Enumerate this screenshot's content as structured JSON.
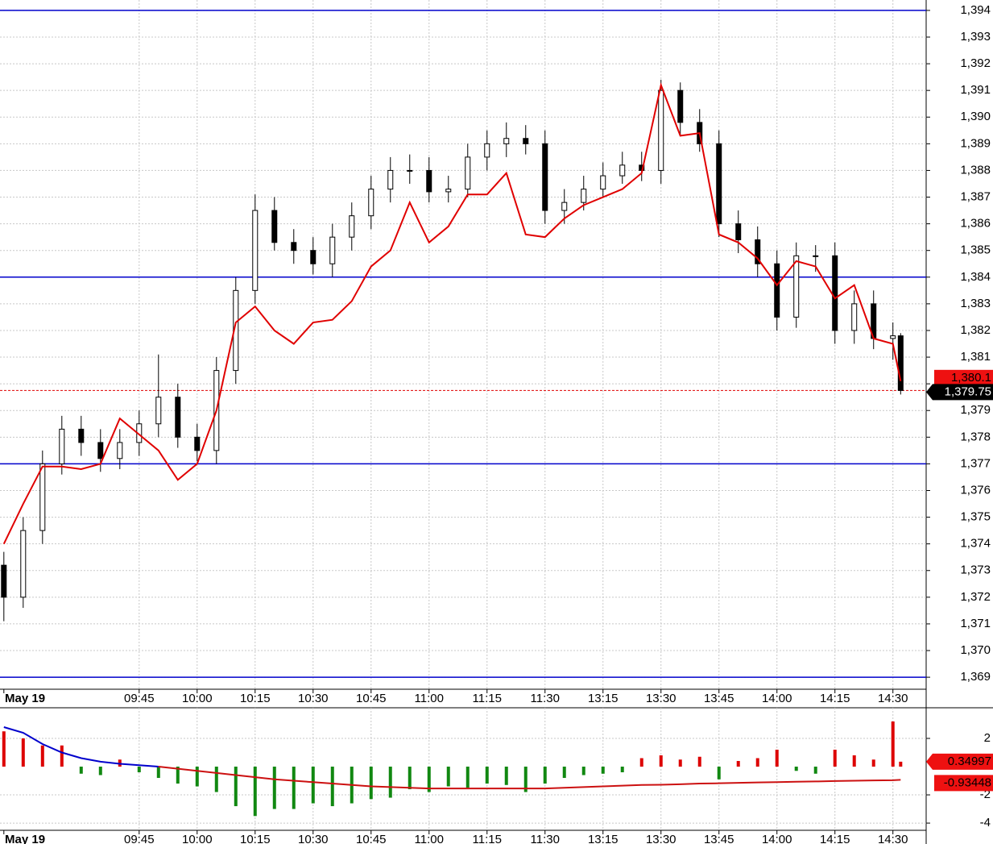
{
  "chart_data": [
    {
      "type": "candlestick",
      "x": [
        0,
        5,
        10,
        15,
        20,
        25,
        30,
        35,
        40,
        45,
        50,
        55,
        60,
        65,
        70,
        75,
        80,
        85,
        90,
        95,
        100,
        105,
        110,
        115,
        120,
        125,
        130,
        135,
        140,
        145,
        150,
        155,
        160,
        165,
        170,
        175,
        180,
        185,
        190,
        195,
        200,
        205,
        210,
        215,
        220,
        225,
        230,
        232
      ],
      "open": [
        1373.2,
        1372.0,
        1374.5,
        1377.0,
        1378.3,
        1377.8,
        1377.2,
        1377.8,
        1378.5,
        1379.5,
        1378.0,
        1377.5,
        1380.5,
        1383.5,
        1386.5,
        1385.3,
        1385.0,
        1384.5,
        1385.5,
        1386.3,
        1387.3,
        1388.0,
        1388.0,
        1387.2,
        1387.3,
        1388.5,
        1389.0,
        1389.2,
        1389.0,
        1386.5,
        1386.8,
        1387.3,
        1387.8,
        1388.2,
        1388.0,
        1391.0,
        1389.8,
        1389.0,
        1386.0,
        1385.4,
        1384.5,
        1382.5,
        1384.8,
        1384.8,
        1382.0,
        1383.0,
        1381.7,
        1381.8
      ],
      "high": [
        1373.7,
        1375.0,
        1377.5,
        1378.8,
        1378.8,
        1378.3,
        1378.3,
        1379.0,
        1381.1,
        1380.0,
        1378.5,
        1381.0,
        1384.0,
        1387.1,
        1387.0,
        1385.8,
        1385.5,
        1386.0,
        1386.8,
        1387.8,
        1388.5,
        1388.6,
        1388.5,
        1387.8,
        1389.0,
        1389.5,
        1389.8,
        1389.7,
        1389.5,
        1387.3,
        1387.8,
        1388.3,
        1388.7,
        1388.7,
        1391.4,
        1391.3,
        1390.3,
        1389.5,
        1386.5,
        1385.9,
        1385.0,
        1385.3,
        1385.2,
        1385.3,
        1383.5,
        1383.5,
        1382.3,
        1381.9
      ],
      "low": [
        1371.1,
        1371.6,
        1374.0,
        1376.6,
        1377.3,
        1376.7,
        1376.8,
        1377.3,
        1378.0,
        1377.6,
        1377.1,
        1377.0,
        1380.0,
        1383.0,
        1385.0,
        1384.5,
        1384.1,
        1384.0,
        1385.0,
        1385.8,
        1386.8,
        1387.5,
        1386.8,
        1386.8,
        1387.0,
        1388.0,
        1388.5,
        1388.6,
        1386.0,
        1386.0,
        1386.5,
        1387.0,
        1387.5,
        1387.6,
        1387.5,
        1389.3,
        1388.7,
        1385.5,
        1384.9,
        1384.0,
        1382.0,
        1382.1,
        1384.2,
        1381.5,
        1381.5,
        1381.3,
        1380.9,
        1379.6
      ],
      "close": [
        1372.0,
        1374.5,
        1377.0,
        1378.3,
        1377.8,
        1377.2,
        1377.8,
        1378.5,
        1379.5,
        1378.0,
        1377.5,
        1380.5,
        1383.5,
        1386.5,
        1385.3,
        1385.0,
        1384.5,
        1385.5,
        1386.3,
        1387.3,
        1388.0,
        1388.0,
        1387.2,
        1387.3,
        1388.5,
        1389.0,
        1389.2,
        1389.0,
        1386.5,
        1386.8,
        1387.3,
        1387.8,
        1388.2,
        1388.0,
        1391.0,
        1389.8,
        1389.0,
        1386.0,
        1385.4,
        1384.5,
        1382.5,
        1384.8,
        1384.8,
        1382.0,
        1383.0,
        1381.7,
        1381.8,
        1379.75
      ],
      "close_last_label": "1,379.75",
      "overlay": {
        "color": "#e00000",
        "values": [
          1374.0,
          1375.5,
          1376.9,
          1376.9,
          1376.8,
          1377.0,
          1378.7,
          1378.1,
          1377.5,
          1376.4,
          1377.0,
          1379.0,
          1382.3,
          1382.9,
          1382.0,
          1381.5,
          1382.3,
          1382.4,
          1383.1,
          1384.4,
          1385.0,
          1386.8,
          1385.3,
          1385.9,
          1387.1,
          1387.1,
          1387.9,
          1385.6,
          1385.5,
          1386.2,
          1386.7,
          1387.0,
          1387.3,
          1387.9,
          1391.2,
          1389.3,
          1389.4,
          1385.6,
          1385.3,
          1384.7,
          1383.7,
          1384.6,
          1384.4,
          1383.2,
          1383.7,
          1381.7,
          1381.5,
          1380.1
        ],
        "last_label": "1,380.1"
      },
      "hlines": [
        1394,
        1384,
        1377,
        1369
      ],
      "hline_color": "#0000cc",
      "xlim": [
        -1,
        238.6
      ],
      "xticks": [
        {
          "value": 0,
          "label": "May 19"
        },
        {
          "value": 35,
          "label": "09:45"
        },
        {
          "value": 50,
          "label": "10:00"
        },
        {
          "value": 65,
          "label": "10:15"
        },
        {
          "value": 80,
          "label": "10:30"
        },
        {
          "value": 95,
          "label": "10:45"
        },
        {
          "value": 110,
          "label": "11:00"
        },
        {
          "value": 125,
          "label": "11:15"
        },
        {
          "value": 140,
          "label": "11:30"
        },
        {
          "value": 155,
          "label": "13:15"
        },
        {
          "value": 170,
          "label": "13:30"
        },
        {
          "value": 185,
          "label": "13:45"
        },
        {
          "value": 200,
          "label": "14:00"
        },
        {
          "value": 215,
          "label": "14:15"
        },
        {
          "value": 230,
          "label": "14:30"
        }
      ],
      "ylim": [
        1368.55,
        1394.39
      ],
      "yticks": [
        {
          "value": 1369,
          "label": "1,369"
        },
        {
          "value": 1370,
          "label": "1,370"
        },
        {
          "value": 1371,
          "label": "1,371"
        },
        {
          "value": 1372,
          "label": "1,372"
        },
        {
          "value": 1373,
          "label": "1,373"
        },
        {
          "value": 1374,
          "label": "1,374"
        },
        {
          "value": 1375,
          "label": "1,375"
        },
        {
          "value": 1376,
          "label": "1,376"
        },
        {
          "value": 1377,
          "label": "1,377"
        },
        {
          "value": 1378,
          "label": "1,378"
        },
        {
          "value": 1379,
          "label": "1,379"
        },
        {
          "value": 1380,
          "label": "1,380"
        },
        {
          "value": 1381,
          "label": "1,381"
        },
        {
          "value": 1382,
          "label": "1,382"
        },
        {
          "value": 1383,
          "label": "1,383"
        },
        {
          "value": 1384,
          "label": "1,384"
        },
        {
          "value": 1385,
          "label": "1,385"
        },
        {
          "value": 1386,
          "label": "1,386"
        },
        {
          "value": 1387,
          "label": "1,387"
        },
        {
          "value": 1388,
          "label": "1,388"
        },
        {
          "value": 1389,
          "label": "1,389"
        },
        {
          "value": 1390,
          "label": "1,390"
        },
        {
          "value": 1391,
          "label": "1,391"
        },
        {
          "value": 1392,
          "label": "1,392"
        },
        {
          "value": 1393,
          "label": "1,393"
        },
        {
          "value": 1394,
          "label": "1,394"
        }
      ],
      "grid": true
    },
    {
      "type": "bar",
      "x": [
        0,
        5,
        10,
        15,
        20,
        25,
        30,
        35,
        40,
        45,
        50,
        55,
        60,
        65,
        70,
        75,
        80,
        85,
        90,
        95,
        100,
        105,
        110,
        115,
        120,
        125,
        130,
        135,
        140,
        145,
        150,
        155,
        160,
        165,
        170,
        175,
        180,
        185,
        190,
        195,
        200,
        205,
        210,
        215,
        220,
        225,
        230,
        232
      ],
      "values": [
        2.5,
        2.0,
        1.5,
        1.5,
        -0.5,
        -0.6,
        0.5,
        -0.4,
        -0.8,
        -1.2,
        -1.4,
        -1.8,
        -2.8,
        -3.5,
        -3.0,
        -3.0,
        -2.6,
        -2.8,
        -2.6,
        -2.3,
        -2.2,
        -1.6,
        -1.8,
        -1.4,
        -1.5,
        -1.2,
        -1.3,
        -1.8,
        -1.2,
        -0.8,
        -0.6,
        -0.5,
        -0.4,
        0.6,
        0.8,
        0.5,
        0.7,
        -0.9,
        0.4,
        0.6,
        1.2,
        -0.3,
        -0.5,
        1.2,
        0.8,
        0.5,
        3.2,
        0.34997
      ],
      "positive_color": "#dd0000",
      "negative_color": "#118811",
      "series": [
        {
          "color": "#0000cc",
          "values": [
            2.8,
            2.4,
            1.6,
            1.0,
            0.6,
            0.35,
            0.2,
            0.1,
            0.0,
            null,
            null,
            null,
            null,
            null,
            null,
            null,
            null,
            null,
            null,
            null,
            null,
            null,
            null,
            null,
            null,
            null,
            null,
            null,
            null,
            null,
            null,
            null,
            null,
            null,
            null,
            null,
            null,
            null,
            null,
            null,
            null,
            null,
            null,
            null,
            null,
            null,
            null,
            null
          ]
        },
        {
          "color": "#cc1111",
          "values": [
            null,
            null,
            null,
            null,
            null,
            null,
            null,
            null,
            0.0,
            -0.15,
            -0.3,
            -0.45,
            -0.6,
            -0.75,
            -0.9,
            -1.0,
            -1.1,
            -1.2,
            -1.3,
            -1.4,
            -1.45,
            -1.5,
            -1.55,
            -1.55,
            -1.55,
            -1.55,
            -1.55,
            -1.55,
            -1.55,
            -1.5,
            -1.45,
            -1.4,
            -1.35,
            -1.3,
            -1.28,
            -1.25,
            -1.2,
            -1.18,
            -1.15,
            -1.12,
            -1.1,
            -1.07,
            -1.05,
            -1.02,
            -1.0,
            -0.98,
            -0.96,
            -0.93448
          ]
        }
      ],
      "hist_last_label": "0.34997",
      "signal_last_label": "-0.93448",
      "xlim": [
        -1,
        238.6
      ],
      "xticks": [
        {
          "value": 0,
          "label": "May 19"
        },
        {
          "value": 35,
          "label": "09:45"
        },
        {
          "value": 50,
          "label": "10:00"
        },
        {
          "value": 65,
          "label": "10:15"
        },
        {
          "value": 80,
          "label": "10:30"
        },
        {
          "value": 95,
          "label": "10:45"
        },
        {
          "value": 110,
          "label": "11:00"
        },
        {
          "value": 125,
          "label": "11:15"
        },
        {
          "value": 140,
          "label": "11:30"
        },
        {
          "value": 155,
          "label": "13:15"
        },
        {
          "value": 170,
          "label": "13:30"
        },
        {
          "value": 185,
          "label": "13:45"
        },
        {
          "value": 200,
          "label": "14:00"
        },
        {
          "value": 215,
          "label": "14:15"
        },
        {
          "value": 230,
          "label": "14:30"
        }
      ],
      "ylim": [
        -4.51,
        4.17
      ],
      "yticks": [
        2,
        -2,
        -4
      ],
      "grid": true
    }
  ]
}
